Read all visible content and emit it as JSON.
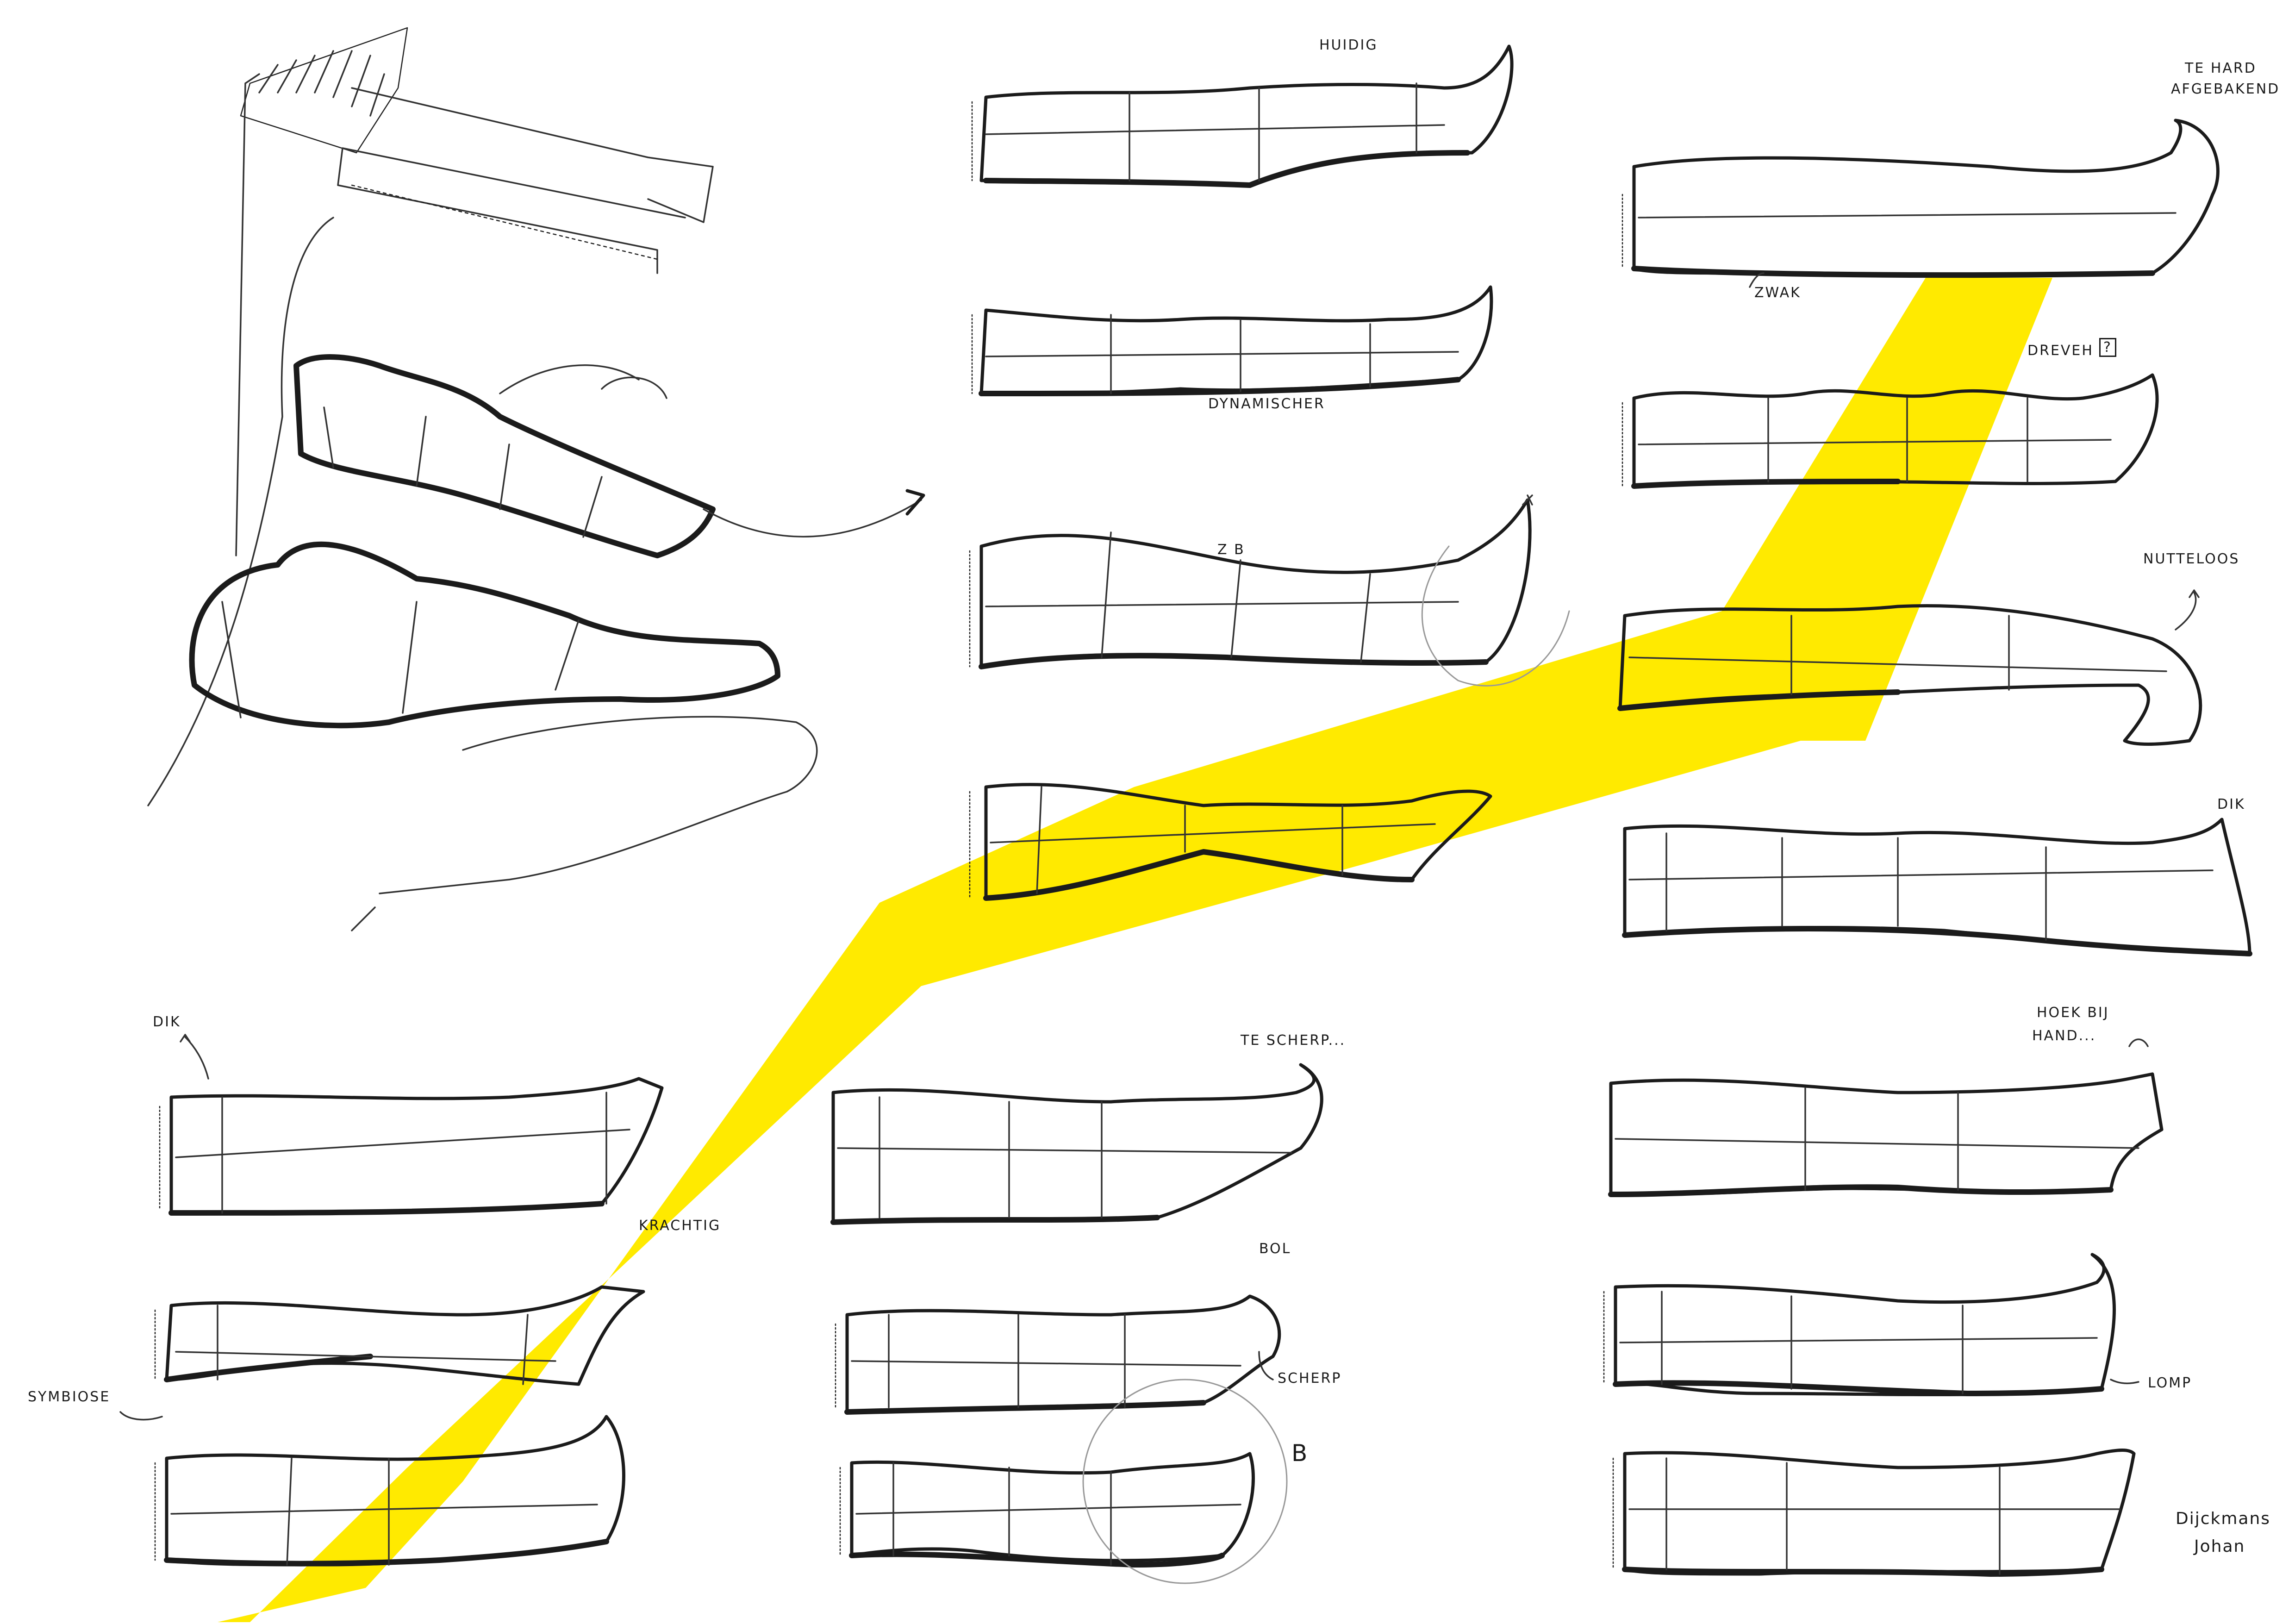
{
  "annotations": {
    "huidig": "HUIDIG",
    "te_hard": "TE HARD",
    "afgebakend": "AFGEBAKEND",
    "zwak": "ZWAK",
    "dynamischer": "DYNAMISCHER",
    "dreveh": "DREVEH",
    "dreveh_box": "?",
    "z_b": "Z B",
    "nutteloos": "NUTTELOOS",
    "dik_right": "DIK",
    "dik_left": "DIK",
    "te_scherp": "TE SCHERP...",
    "hoek_bij": "HOEK BIJ",
    "hand": "HAND...",
    "krachtig": "KRACHTIG",
    "bol": "BOL",
    "scherp": "SCHERP",
    "lomp": "LOMP",
    "symbiose": "SYMBIOSE",
    "b_small": "B"
  },
  "signature": {
    "line1": "Dijckmans",
    "line2": "Johan"
  },
  "colors": {
    "paper": "#ffffff",
    "ink": "#1b1b1b",
    "highlight": "#ffea00",
    "pencil": "#999999"
  },
  "sketch_count": 18
}
